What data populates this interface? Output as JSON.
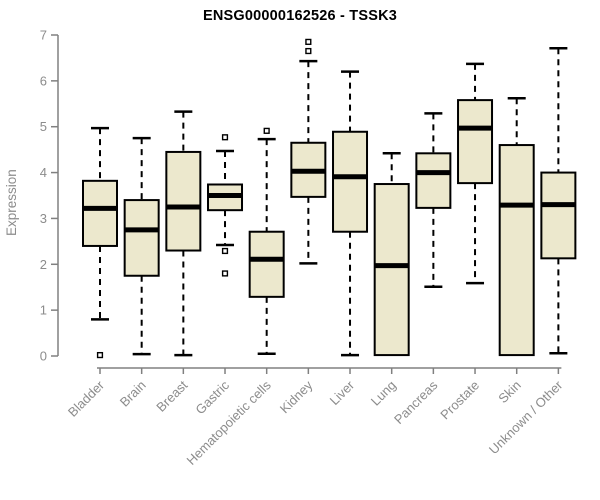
{
  "chart_data": {
    "type": "box",
    "title": "ENSG00000162526 - TSSK3",
    "ylabel": "Expression",
    "xlabel": "",
    "ylim": [
      0,
      7
    ],
    "yticks": [
      0,
      1,
      2,
      3,
      4,
      5,
      6,
      7
    ],
    "categories": [
      "Bladder",
      "Brain",
      "Breast",
      "Gastric",
      "Hematopoietic cells",
      "Kidney",
      "Liver",
      "Lung",
      "Pancreas",
      "Prostate",
      "Skin",
      "Unknown / Other"
    ],
    "boxes": [
      {
        "category": "Bladder",
        "low": 0.8,
        "q1": 2.4,
        "median": 3.22,
        "q3": 3.82,
        "high": 4.97,
        "outliers": [
          0.02
        ]
      },
      {
        "category": "Brain",
        "low": 0.04,
        "q1": 1.75,
        "median": 2.75,
        "q3": 3.4,
        "high": 4.75,
        "outliers": []
      },
      {
        "category": "Breast",
        "low": 0.02,
        "q1": 2.3,
        "median": 3.25,
        "q3": 4.45,
        "high": 5.33,
        "outliers": []
      },
      {
        "category": "Gastric",
        "low": 2.42,
        "q1": 3.18,
        "median": 3.5,
        "q3": 3.74,
        "high": 4.47,
        "outliers": [
          4.77,
          2.29,
          1.8
        ]
      },
      {
        "category": "Hematopoietic cells",
        "low": 0.05,
        "q1": 1.29,
        "median": 2.11,
        "q3": 2.71,
        "high": 4.73,
        "outliers": [
          4.91
        ]
      },
      {
        "category": "Kidney",
        "low": 2.02,
        "q1": 3.47,
        "median": 4.03,
        "q3": 4.65,
        "high": 6.43,
        "outliers": [
          6.85,
          6.65
        ]
      },
      {
        "category": "Liver",
        "low": 0.02,
        "q1": 2.71,
        "median": 3.91,
        "q3": 4.89,
        "high": 6.2,
        "outliers": []
      },
      {
        "category": "Lung",
        "low": 0.02,
        "q1": 0.02,
        "median": 1.97,
        "q3": 3.75,
        "high": 4.42,
        "outliers": []
      },
      {
        "category": "Pancreas",
        "low": 1.51,
        "q1": 3.23,
        "median": 4.0,
        "q3": 4.42,
        "high": 5.29,
        "outliers": []
      },
      {
        "category": "Prostate",
        "low": 1.59,
        "q1": 3.77,
        "median": 4.97,
        "q3": 5.58,
        "high": 6.37,
        "outliers": []
      },
      {
        "category": "Skin",
        "low": 0.02,
        "q1": 0.02,
        "median": 3.29,
        "q3": 4.6,
        "high": 5.62,
        "outliers": []
      },
      {
        "category": "Unknown / Other",
        "low": 0.06,
        "q1": 2.13,
        "median": 3.3,
        "q3": 4.0,
        "high": 6.71,
        "outliers": []
      }
    ],
    "style": {
      "box_fill": "#ece8cd",
      "box_border": "#000000",
      "median_color": "#000000",
      "whisker_color": "#000000",
      "outlier_color": "#000000",
      "axis_color": "#808080",
      "tick_label_color": "#8c8c8c",
      "title_color": "#000000",
      "background": "#ffffff"
    },
    "layout_hints": {
      "grid": false,
      "legend": false,
      "x_label_rotation": 45,
      "whisker_style": "dashed"
    }
  }
}
